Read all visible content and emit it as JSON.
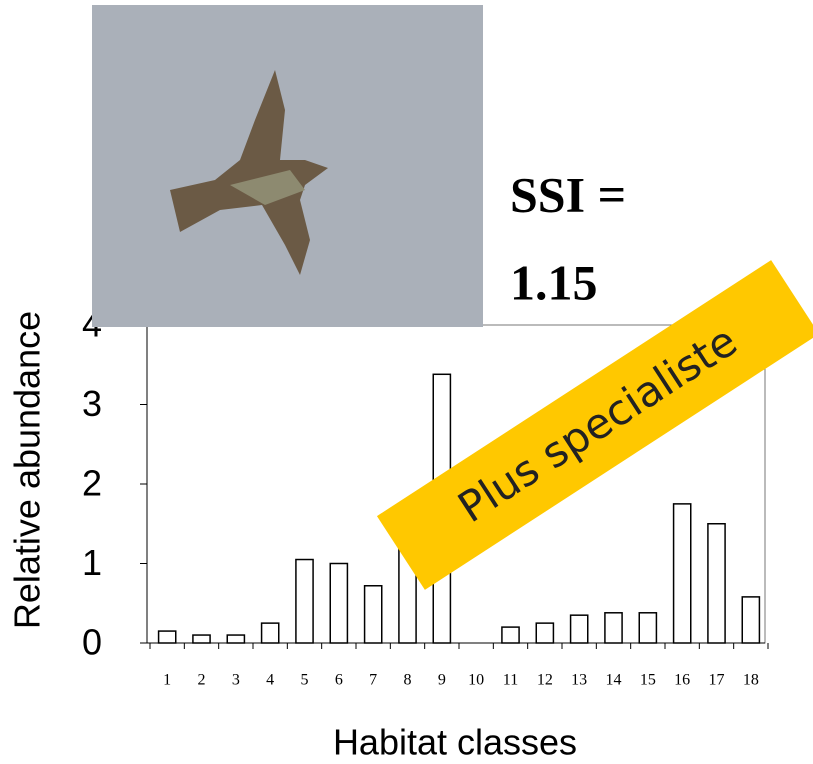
{
  "chart_data": {
    "type": "bar",
    "categories": [
      "1",
      "2",
      "3",
      "4",
      "5",
      "6",
      "7",
      "8",
      "9",
      "10",
      "11",
      "12",
      "13",
      "14",
      "15",
      "16",
      "17",
      "18"
    ],
    "values": [
      0.15,
      0.1,
      0.1,
      0.25,
      1.05,
      1.0,
      0.72,
      1.22,
      3.38,
      0,
      0.2,
      0.25,
      0.35,
      0.38,
      0.38,
      1.75,
      1.5,
      0.58
    ],
    "color": "#ffffff",
    "ylim": [
      0,
      4
    ],
    "yticks": [
      0,
      1,
      2,
      3,
      4
    ],
    "x_label": "Habitat classes",
    "y_label": "Relative abundance",
    "annotations": [
      "SSI =",
      "1.15",
      "Plus specialiste"
    ]
  }
}
